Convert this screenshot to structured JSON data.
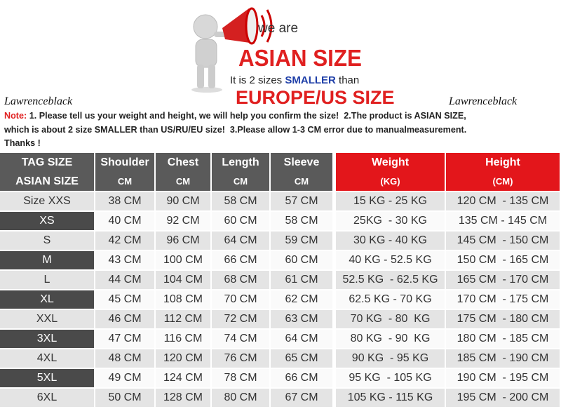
{
  "header": {
    "we_are": "we are",
    "asian_size": "ASIAN SIZE",
    "it_is": "It is 2 sizes",
    "smaller": "SMALLER",
    "than": "than",
    "europe_us": "EUROPE/US SIZE"
  },
  "brand_left": "Lawrenceblack",
  "brand_right": "Lawrenceblack",
  "note": {
    "label": "Note:",
    "lines": [
      "1. Please tell us your weight and height, we will help you confirm the size!  2.The product is ASIAN SIZE,",
      "which is about 2 size SMALLER than US/RU/EU size!  3.Please allow 1-3 CM error due to manualmeasurement.",
      "Thanks !"
    ]
  },
  "table": {
    "header": [
      [
        "TAG SIZE",
        "Shoulder",
        "Chest",
        "Length",
        "Sleeve",
        "Weight",
        "Height"
      ],
      [
        "ASIAN SIZE",
        "CM",
        "CM",
        "CM",
        "CM",
        "(KG)",
        "(CM)"
      ]
    ],
    "rows": [
      [
        "Size XXS",
        "38 CM",
        "90 CM",
        "58 CM",
        "57 CM",
        "15 KG - 25 KG",
        "120 CM  - 135 CM"
      ],
      [
        "XS",
        "40 CM",
        "92 CM",
        "60 CM",
        "58 CM",
        "25KG  - 30 KG",
        "135 CM - 145 CM"
      ],
      [
        "S",
        "42 CM",
        "96 CM",
        "64 CM",
        "59 CM",
        "30 KG - 40 KG",
        "145 CM  - 150 CM"
      ],
      [
        "M",
        "43 CM",
        "100 CM",
        "66 CM",
        "60 CM",
        "40 KG - 52.5 KG",
        "150 CM  - 165 CM"
      ],
      [
        "L",
        "44 CM",
        "104 CM",
        "68 CM",
        "61 CM",
        "52.5 KG  - 62.5 KG",
        "165 CM  - 170 CM"
      ],
      [
        "XL",
        "45 CM",
        "108 CM",
        "70 CM",
        "62 CM",
        "62.5 KG - 70 KG",
        "170 CM  - 175 CM"
      ],
      [
        "XXL",
        "46 CM",
        "112 CM",
        "72 CM",
        "63 CM",
        "70 KG  - 80  KG",
        "175 CM  - 180 CM"
      ],
      [
        "3XL",
        "47 CM",
        "116 CM",
        "74 CM",
        "64 CM",
        "80 KG  - 90  KG",
        "180 CM  - 185 CM"
      ],
      [
        "4XL",
        "48 CM",
        "120 CM",
        "76 CM",
        "65 CM",
        "90 KG  - 95 KG",
        "185 CM  - 190 CM"
      ],
      [
        "5XL",
        "49 CM",
        "124 CM",
        "78 CM",
        "66 CM",
        "95 KG  - 105 KG",
        "190 CM  - 195 CM"
      ],
      [
        "6XL",
        "50 CM",
        "128 CM",
        "80 CM",
        "67 CM",
        "105 KG - 115 KG",
        "195 CM  - 200 CM"
      ]
    ]
  }
}
